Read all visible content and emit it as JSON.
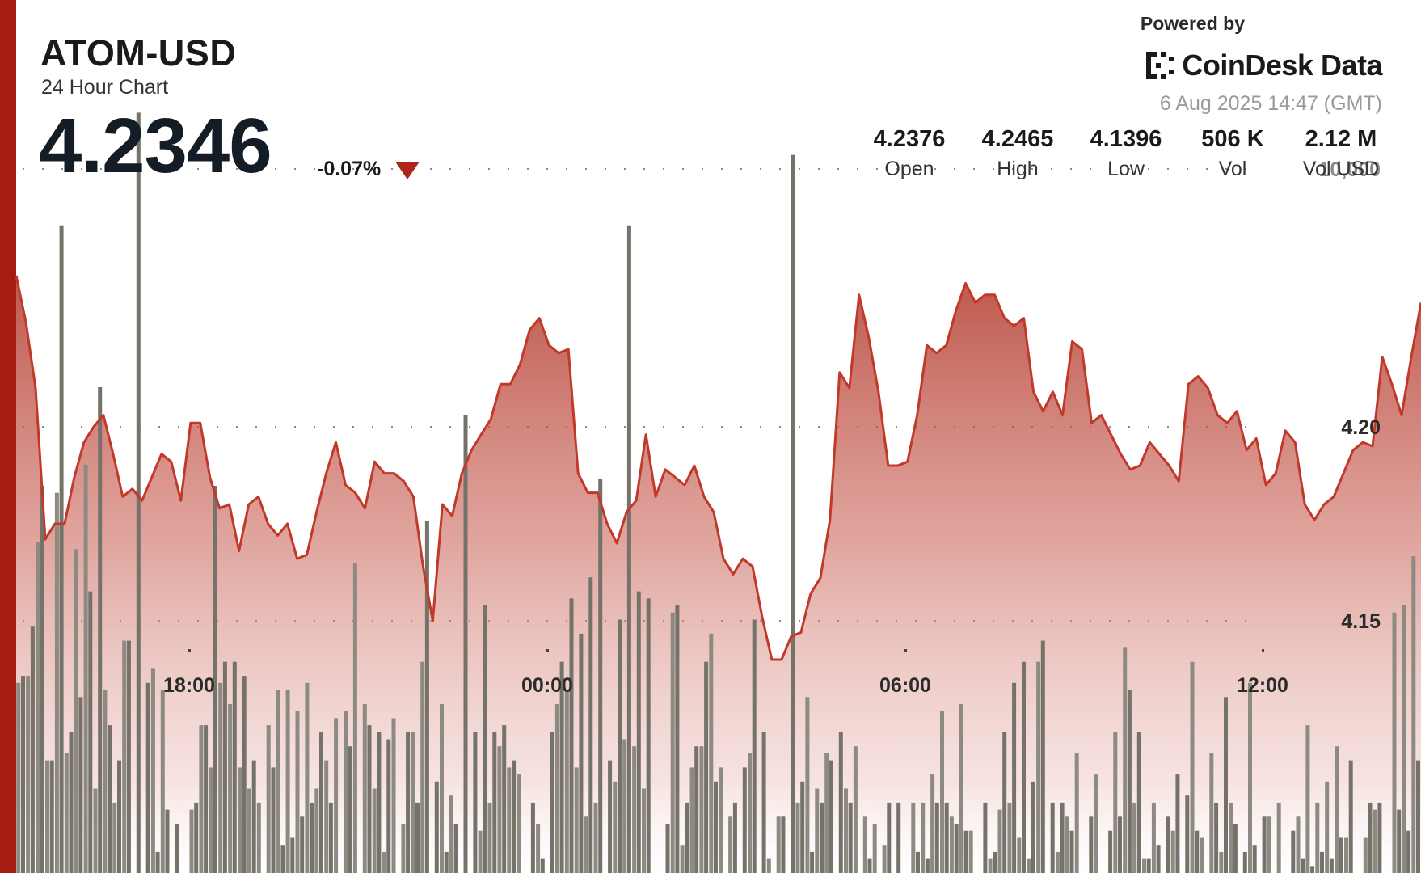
{
  "header": {
    "symbol": "ATOM-USD",
    "subtitle": "24 Hour Chart",
    "price": "4.2346",
    "change": "-0.07%",
    "powered_by": "Powered by",
    "brand": "CoinDesk Data",
    "timestamp": "6 Aug 2025 14:47 (GMT)"
  },
  "stats": [
    {
      "value": "4.2376",
      "label": "Open"
    },
    {
      "value": "4.2465",
      "label": "High"
    },
    {
      "value": "4.1396",
      "label": "Low"
    },
    {
      "value": "506 K",
      "label": "Vol"
    },
    {
      "value": "2.12 M",
      "label": "Vol USD"
    }
  ],
  "colors": {
    "accent": "#a51c10",
    "line": "#c0392b",
    "volume_bar": "#7d7a72",
    "down": "#b0251a"
  },
  "chart_data": {
    "type": "line",
    "title": "ATOM-USD",
    "x_ticks": [
      "18:00",
      "00:00",
      "06:00",
      "12:00"
    ],
    "price_ticks": [
      {
        "label": "4.20",
        "value": 4.2
      },
      {
        "label": "4.15",
        "value": 4.15
      }
    ],
    "volume_tick": {
      "label": "10,000",
      "value": 10000
    },
    "ylim": [
      4.085,
      4.31
    ],
    "volume_ylim": [
      0,
      12400
    ],
    "price": [
      4.239,
      4.227,
      4.21,
      4.171,
      4.175,
      4.175,
      4.187,
      4.196,
      4.2,
      4.203,
      4.193,
      4.182,
      4.184,
      4.181,
      4.187,
      4.193,
      4.191,
      4.181,
      4.201,
      4.201,
      4.187,
      4.179,
      4.18,
      4.168,
      4.18,
      4.182,
      4.175,
      4.172,
      4.175,
      4.166,
      4.167,
      4.178,
      4.188,
      4.196,
      4.185,
      4.183,
      4.179,
      4.191,
      4.188,
      4.188,
      4.186,
      4.182,
      4.164,
      4.15,
      4.18,
      4.177,
      4.188,
      4.194,
      4.198,
      4.202,
      4.211,
      4.211,
      4.216,
      4.225,
      4.228,
      4.221,
      4.219,
      4.22,
      4.188,
      4.183,
      4.183,
      4.175,
      4.17,
      4.178,
      4.181,
      4.198,
      4.182,
      4.189,
      4.187,
      4.185,
      4.19,
      4.182,
      4.178,
      4.166,
      4.162,
      4.166,
      4.164,
      4.151,
      4.14,
      4.14,
      4.146,
      4.147,
      4.157,
      4.161,
      4.176,
      4.214,
      4.21,
      4.234,
      4.223,
      4.209,
      4.19,
      4.19,
      4.191,
      4.203,
      4.221,
      4.219,
      4.221,
      4.23,
      4.237,
      4.232,
      4.234,
      4.234,
      4.228,
      4.226,
      4.228,
      4.209,
      4.204,
      4.209,
      4.203,
      4.222,
      4.22,
      4.201,
      4.203,
      4.198,
      4.193,
      4.189,
      4.19,
      4.196,
      4.193,
      4.19,
      4.186,
      4.211,
      4.213,
      4.21,
      4.203,
      4.201,
      4.204,
      4.194,
      4.197,
      4.185,
      4.188,
      4.199,
      4.196,
      4.18,
      4.176,
      4.18,
      4.182,
      4.188,
      4.194,
      4.196,
      4.195,
      4.218,
      4.211,
      4.203,
      4.218,
      4.232
    ],
    "volume": [
      2800,
      3500,
      5500,
      1600,
      9200,
      2000,
      2500,
      4000,
      6900,
      2100,
      1600,
      3300,
      10800,
      2700,
      300,
      900,
      700,
      0,
      1000,
      2100,
      5500,
      3000,
      3000,
      2800,
      1600,
      0,
      1500,
      400,
      500,
      800,
      1000,
      2000,
      1000,
      0,
      1800,
      0,
      2100,
      2000,
      1900,
      0,
      2000,
      1000,
      5000,
      1300,
      300,
      700,
      6500,
      2000,
      3800,
      2000,
      2100,
      1600,
      0,
      1000,
      200,
      2000,
      3000,
      3900,
      3400,
      4200,
      5600,
      1600,
      3600,
      9200,
      4000,
      3900,
      0,
      700,
      3800,
      1000,
      1800,
      3000,
      1300,
      0,
      1000,
      1500,
      3600,
      2000,
      0,
      800,
      10200,
      1300,
      300,
      1000,
      1600,
      2000,
      1000,
      0,
      200,
      0,
      1000,
      1000,
      0,
      300,
      200,
      1000,
      1000,
      700,
      600,
      0,
      1000,
      300,
      2000,
      2700,
      3000,
      1300,
      3300,
      1000,
      1000,
      600,
      0,
      800,
      0,
      600,
      800,
      2600,
      2000,
      200,
      400,
      800,
      1400,
      1100,
      600,
      0,
      1000,
      2500,
      700,
      300,
      400,
      800,
      0,
      0,
      600,
      200,
      100,
      300,
      200,
      500,
      1600,
      0,
      1000,
      1000,
      0,
      900,
      600,
      1600,
      300,
      1000,
      2400,
      1000,
      800,
      1800,
      1000
    ],
    "volume_left": [
      2700,
      2800,
      4700,
      1600,
      5400,
      1700,
      4600,
      5800,
      1200,
      2600,
      1000,
      3300,
      0,
      0,
      2900,
      2600,
      0,
      0,
      900,
      2100,
      1500,
      2700,
      2400,
      1500,
      1200,
      1000,
      2100,
      2600,
      2600,
      2300,
      2700,
      1200,
      1600,
      2200,
      2300,
      4400,
      2400,
      1200,
      300,
      2200,
      700,
      2000,
      3000,
      0,
      2400,
      1100,
      0,
      0,
      600,
      1000,
      1800,
      1500,
      1400,
      0,
      700,
      0,
      2400,
      2600,
      1500,
      800,
      1000,
      0,
      1300,
      1900,
      1800,
      1200,
      0,
      0,
      3700,
      400,
      1500,
      1800,
      3400,
      1500,
      800,
      0,
      1700,
      0,
      200,
      800,
      0,
      1000,
      2500,
      1200,
      1700,
      0,
      1200,
      1800,
      800,
      700,
      400,
      0,
      0,
      1000,
      1000,
      1400,
      2300,
      800,
      2400,
      600,
      0,
      200,
      900,
      1000,
      500,
      200,
      3000,
      0,
      300,
      800,
      1700,
      0,
      1400,
      0,
      2000,
      3200,
      1000,
      200,
      1000,
      0,
      600,
      0,
      3000,
      500,
      1700,
      300,
      1000,
      0,
      2700,
      0,
      800,
      1000,
      0,
      800,
      2100,
      1000,
      1300,
      1800,
      500,
      0,
      500,
      900,
      0,
      3700,
      3800,
      4500,
      2400,
      3800,
      2900,
      1800
    ]
  }
}
